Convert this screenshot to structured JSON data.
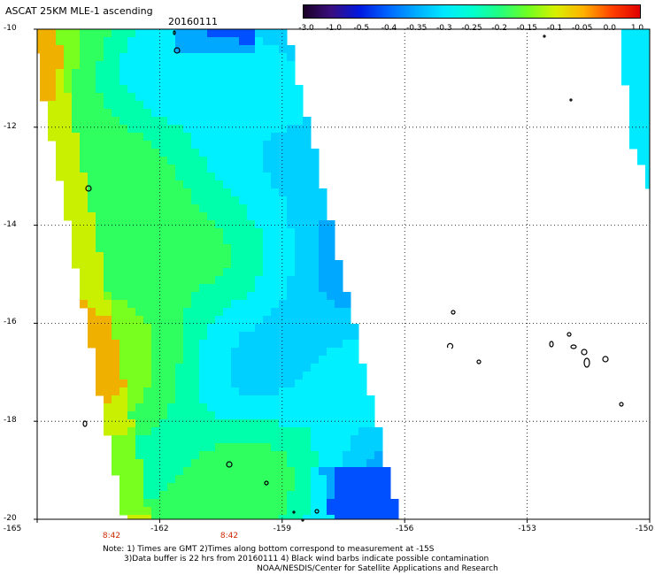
{
  "header": {
    "title": "ASCAT 25KM MLE-1 ascending",
    "date": "20160111"
  },
  "colorbar": {
    "tick_labels": [
      "-3.0",
      "-1.0",
      "-0.5",
      "-0.4",
      "-0.35",
      "-0.3",
      "-0.25",
      "-0.2",
      "-0.15",
      "-0.1",
      "-0.05",
      "0.0",
      "1.0"
    ],
    "colors": [
      "#1a0026",
      "#3a0f80",
      "#0018e0",
      "#0064ff",
      "#00aaff",
      "#00e8ff",
      "#00ffd0",
      "#22ff80",
      "#70ff20",
      "#d8f000",
      "#ffb000",
      "#ff4000",
      "#e00000"
    ]
  },
  "map": {
    "lat_labels": [
      "-10",
      "-12",
      "-14",
      "-16",
      "-18",
      "-20"
    ],
    "lon_labels": [
      "-165",
      "-162",
      "-159",
      "-156",
      "-153",
      "-150"
    ],
    "time_labels": [
      "8:42",
      "8:42"
    ],
    "grid": "dotted",
    "land_outline_color": "#000000"
  },
  "notes": {
    "line1": "Note: 1) Times are GMT 2)Times along bottom correspond to measurement at -15S",
    "line2": "3)Data buffer is 22 hrs from 20160111 4) Black wind barbs indicate possible contamination",
    "line3": "NOAA/NESDIS/Center for Satellite Applications and Research"
  }
}
